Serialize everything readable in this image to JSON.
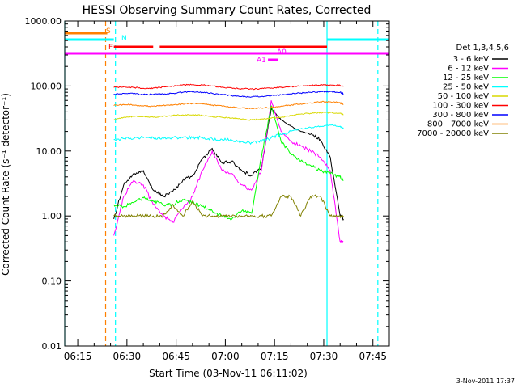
{
  "chart_data": {
    "type": "line",
    "title": "HESSI Observing Summary Count Rates, Corrected",
    "xlabel": "Start Time (03-Nov-11 06:11:02)",
    "ylabel": "Corrected Count Rate (s⁻¹ detector⁻¹)",
    "y_scale": "log",
    "ylim": [
      0.01,
      1000
    ],
    "xlim": [
      "06:11:02",
      "07:50:00"
    ],
    "x_ticks": [
      "06:15",
      "06:30",
      "06:45",
      "07:00",
      "07:15",
      "07:30",
      "07:45"
    ],
    "y_ticks": [
      "1000.00",
      "100.00",
      "10.00",
      "1.00",
      "0.10",
      "0.01"
    ],
    "legend_title": "Det 1,3,4,5,6",
    "legend_position": "right",
    "timestamp": "3-Nov-2011 17:37",
    "flag_bars": [
      {
        "label": "S",
        "color": "#ff8000",
        "segments": [
          [
            "06:11:02",
            "06:24:00"
          ]
        ]
      },
      {
        "label": "N",
        "color": "#00ffff",
        "segments": [
          [
            "06:11:02",
            "06:26:00"
          ],
          [
            "07:31:00",
            "07:50:00"
          ]
        ]
      },
      {
        "label": "F",
        "color": "#ff0000",
        "segments": [
          [
            "06:26:00",
            "06:38:00"
          ],
          [
            "06:40:00",
            "07:31:00"
          ]
        ]
      },
      {
        "label": "A0",
        "color": "#ff00ff",
        "segments": [
          [
            "06:11:02",
            "07:50:00"
          ]
        ]
      },
      {
        "label": "A1",
        "color": "#ff00ff",
        "segments": [
          [
            "07:13:00",
            "07:16:00"
          ]
        ]
      }
    ],
    "vertical_lines": [
      {
        "time": "06:11:02",
        "color": "#00ffff",
        "style": "solid"
      },
      {
        "time": "06:23:30",
        "color": "#ff8000",
        "style": "dashed"
      },
      {
        "time": "06:26:30",
        "color": "#00ffff",
        "style": "dashed"
      },
      {
        "time": "07:31:00",
        "color": "#00ffff",
        "style": "solid"
      },
      {
        "time": "07:46:30",
        "color": "#00ffff",
        "style": "dashed"
      }
    ],
    "x": [
      "06:26:00",
      "06:29:00",
      "06:32:00",
      "06:35:00",
      "06:38:00",
      "06:41:00",
      "06:44:00",
      "06:47:00",
      "06:50:00",
      "06:53:00",
      "06:56:00",
      "06:59:00",
      "07:02:00",
      "07:05:00",
      "07:08:00",
      "07:11:00",
      "07:14:00",
      "07:17:00",
      "07:20:00",
      "07:23:00",
      "07:26:00",
      "07:29:00",
      "07:32:00",
      "07:35:00",
      "07:36:00"
    ],
    "series": [
      {
        "name": "3 - 6 keV",
        "color": "#000000",
        "values": [
          0.9,
          3.0,
          4.5,
          5.0,
          2.5,
          2.0,
          2.4,
          3.5,
          4.2,
          7.5,
          11.0,
          6.5,
          7.0,
          5.0,
          4.2,
          5.5,
          45,
          30,
          24,
          20,
          18,
          15,
          8,
          1.0,
          0.9
        ]
      },
      {
        "name": "6 - 12 keV",
        "color": "#ff00ff",
        "values": [
          0.5,
          2.0,
          3.5,
          3.0,
          1.5,
          1.0,
          0.8,
          1.3,
          2.0,
          5.0,
          10.0,
          5.0,
          4.5,
          3.0,
          2.5,
          5.0,
          60,
          20,
          14,
          12,
          10,
          8,
          5,
          0.4,
          0.4
        ]
      },
      {
        "name": "12 - 25 keV",
        "color": "#00ff00",
        "values": [
          1.5,
          1.4,
          1.6,
          1.9,
          1.7,
          1.5,
          1.5,
          1.8,
          1.6,
          1.4,
          1.2,
          1.0,
          0.9,
          1.2,
          1.1,
          8.0,
          50,
          14,
          9,
          7,
          6,
          5,
          4.5,
          4.0,
          3.5
        ]
      },
      {
        "name": "25 - 50 keV",
        "color": "#00ffff",
        "values": [
          15,
          15.5,
          15.5,
          16,
          16,
          16,
          16,
          16,
          16,
          16,
          15.5,
          15,
          14.5,
          14,
          13.5,
          14,
          16,
          18,
          20,
          22,
          23,
          24,
          25,
          24,
          22
        ]
      },
      {
        "name": "50 - 100 keV",
        "color": "#d8d800",
        "values": [
          30,
          33,
          34,
          34,
          33,
          34,
          35,
          36,
          36,
          35,
          34,
          33,
          32,
          31,
          30,
          31,
          32,
          33,
          35,
          37,
          38,
          39,
          39,
          38,
          36
        ]
      },
      {
        "name": "100 - 300 keV",
        "color": "#ff0000",
        "values": [
          95,
          97,
          95,
          92,
          93,
          96,
          100,
          104,
          105,
          104,
          100,
          96,
          93,
          91,
          90,
          91,
          93,
          95,
          98,
          100,
          102,
          104,
          104,
          102,
          98
        ]
      },
      {
        "name": "300 - 800 keV",
        "color": "#0000ff",
        "values": [
          75,
          77,
          76,
          74,
          74,
          75,
          77,
          80,
          81,
          80,
          77,
          74,
          71,
          69,
          68,
          69,
          71,
          73,
          76,
          78,
          80,
          82,
          82,
          80,
          76
        ]
      },
      {
        "name": "800 - 7000 keV",
        "color": "#ff8000",
        "values": [
          50,
          52,
          51,
          49,
          49,
          50,
          51,
          53,
          54,
          53,
          51,
          49,
          47,
          46,
          45,
          46,
          47,
          49,
          51,
          53,
          55,
          57,
          57,
          55,
          52
        ]
      },
      {
        "name": "7000 - 20000 keV",
        "color": "#808000",
        "values": [
          1.0,
          1.0,
          1.0,
          1.0,
          1.0,
          1.0,
          1.5,
          1.0,
          1.7,
          1.0,
          1.0,
          1.0,
          1.0,
          1.0,
          1.0,
          1.0,
          1.0,
          2.0,
          2.0,
          1.0,
          2.0,
          2.0,
          1.0,
          1.0,
          1.0
        ]
      }
    ]
  }
}
